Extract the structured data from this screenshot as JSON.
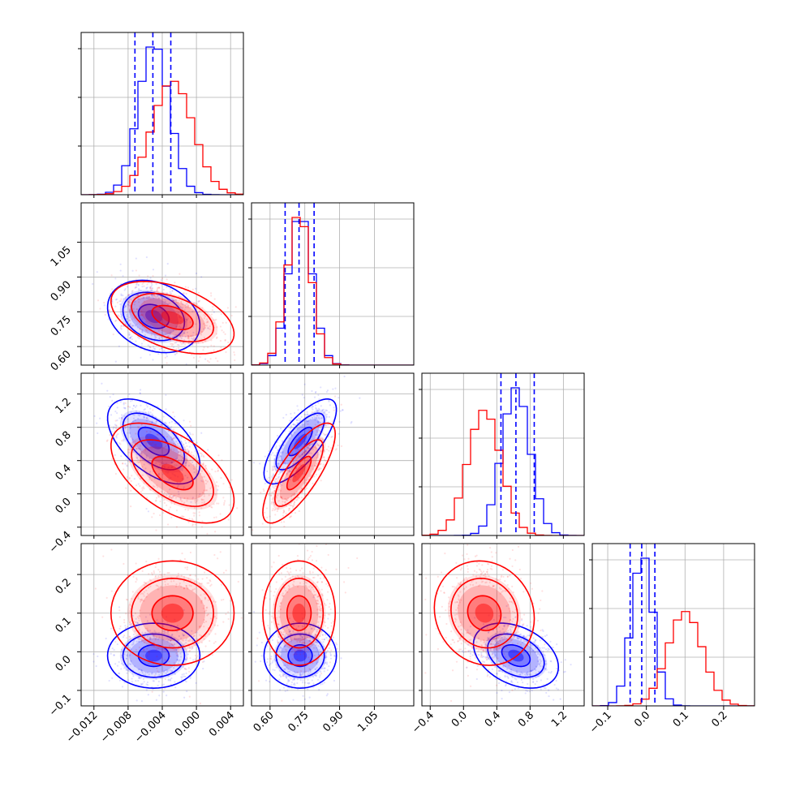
{
  "colors": {
    "series_a": "#0000ff",
    "series_b": "#ff0000",
    "grid": "#b0b0b0"
  },
  "chart_data": {
    "type": "corner",
    "title": "",
    "grid": true,
    "legend": "none",
    "parameters": [
      {
        "label": "",
        "range": [
          -0.0135,
          0.0055
        ],
        "ticks": [
          -0.012,
          -0.008,
          -0.004,
          0.0,
          0.004
        ],
        "tick_labels": [
          "−0.012",
          "−0.008",
          "−0.004",
          "0.000",
          "0.004"
        ]
      },
      {
        "label": "",
        "range": [
          0.52,
          1.22
        ],
        "ticks": [
          0.6,
          0.75,
          0.9,
          1.05
        ],
        "tick_labels": [
          "0.60",
          "0.75",
          "0.90",
          "1.05"
        ]
      },
      {
        "label": "",
        "range": [
          -0.5,
          1.45
        ],
        "ticks": [
          -0.4,
          0.0,
          0.4,
          0.8,
          1.2
        ],
        "tick_labels": [
          "−0.4",
          "0.0",
          "0.4",
          "0.8",
          "1.2"
        ]
      },
      {
        "label": "",
        "range": [
          -0.14,
          0.28
        ],
        "ticks": [
          -0.1,
          0.0,
          0.1,
          0.2
        ],
        "tick_labels": [
          "−0.1",
          "0.0",
          "0.1",
          "0.2"
        ]
      }
    ],
    "series": [
      {
        "color": "#0000ff",
        "mean": [
          -0.005,
          0.73,
          0.63,
          -0.01
        ],
        "std": [
          0.0018,
          0.052,
          0.17,
          0.028
        ],
        "corr": [
          [
            0,
            1,
            -0.25
          ],
          [
            0,
            2,
            -0.55
          ],
          [
            0,
            3,
            0.0
          ],
          [
            1,
            2,
            0.75
          ],
          [
            1,
            3,
            0.0
          ],
          [
            2,
            3,
            -0.35
          ]
        ],
        "quantiles": [
          [
            -0.0072,
            -0.0051,
            -0.003
          ],
          [
            0.665,
            0.725,
            0.79
          ],
          [
            0.45,
            0.63,
            0.85
          ],
          [
            -0.042,
            -0.012,
            0.022
          ]
        ]
      },
      {
        "color": "#ff0000",
        "mean": [
          -0.0028,
          0.725,
          0.25,
          0.1
        ],
        "std": [
          0.0024,
          0.052,
          0.2,
          0.045
        ],
        "corr": [
          [
            0,
            1,
            -0.45
          ],
          [
            0,
            2,
            -0.55
          ],
          [
            0,
            3,
            0.0
          ],
          [
            1,
            2,
            0.78
          ],
          [
            1,
            3,
            0.0
          ],
          [
            2,
            3,
            -0.1
          ]
        ],
        "quantiles": []
      }
    ]
  }
}
